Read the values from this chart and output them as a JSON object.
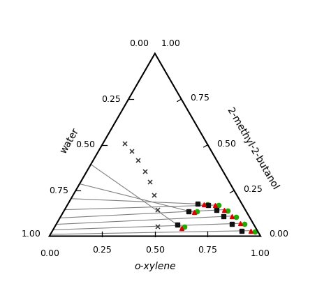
{
  "axis_labels": {
    "bottom": "o-xylene",
    "left": "water",
    "right": "2-methyl-2-butanol"
  },
  "tick_vals": [
    0.25,
    0.5,
    0.75
  ],
  "tick_labels": [
    "0.25",
    "0.50",
    "0.75"
  ],
  "corner_labels_top_left": "0.00",
  "corner_labels_top_right": "1.00",
  "corner_labels_bl_left": "1.00",
  "corner_labels_bl_bottom": "0.00",
  "corner_labels_br_right": "0.00",
  "corner_labels_br_bottom": "1.00",
  "background_color": "#ffffff",
  "triangle_color": "#000000",
  "tieline_color": "#808080",
  "marker_cross_color": "#333333",
  "marker_red_color": "#dd0000",
  "marker_green_color": "#22aa00",
  "marker_black_color": "#111111",
  "fontsize_tick": 9,
  "fontsize_label": 10,
  "tie_lines": [
    {
      "s": [
        0.005,
        0.985,
        0.01
      ],
      "m": [
        0.49,
        0.46,
        0.05
      ],
      "e_r": [
        0.94,
        0.03,
        0.03
      ],
      "e_g": [
        0.96,
        0.015,
        0.025
      ]
    },
    {
      "s": [
        0.005,
        0.96,
        0.035
      ],
      "m": [
        0.44,
        0.415,
        0.145
      ],
      "e_r": [
        0.87,
        0.06,
        0.07
      ],
      "e_g": [
        0.89,
        0.045,
        0.065
      ]
    },
    {
      "s": [
        0.005,
        0.93,
        0.065
      ],
      "m": [
        0.385,
        0.39,
        0.225
      ],
      "e_r": [
        0.81,
        0.08,
        0.11
      ],
      "e_g": [
        0.83,
        0.065,
        0.105
      ]
    },
    {
      "s": [
        0.005,
        0.895,
        0.1
      ],
      "m": [
        0.33,
        0.375,
        0.295
      ],
      "e_r": [
        0.755,
        0.1,
        0.145
      ],
      "e_g": [
        0.775,
        0.085,
        0.14
      ]
    },
    {
      "s": [
        0.005,
        0.85,
        0.145
      ],
      "m": [
        0.275,
        0.37,
        0.355
      ],
      "e_r": [
        0.7,
        0.13,
        0.17
      ],
      "e_g": [
        0.715,
        0.115,
        0.17
      ]
    },
    {
      "s": [
        0.005,
        0.79,
        0.205
      ],
      "m": [
        0.215,
        0.37,
        0.415
      ],
      "e_r": [
        0.645,
        0.18,
        0.175
      ],
      "e_g": [
        0.66,
        0.165,
        0.175
      ]
    },
    {
      "s": [
        0.005,
        0.71,
        0.285
      ],
      "m": [
        0.16,
        0.375,
        0.465
      ],
      "e_r": [
        0.62,
        0.25,
        0.13
      ],
      "e_g": [
        0.63,
        0.235,
        0.135
      ]
    },
    {
      "s": [
        0.005,
        0.605,
        0.39
      ],
      "m": [
        0.105,
        0.39,
        0.505
      ],
      "e_r": [
        0.605,
        0.35,
        0.045
      ],
      "e_g": [
        0.615,
        0.335,
        0.05
      ]
    }
  ]
}
